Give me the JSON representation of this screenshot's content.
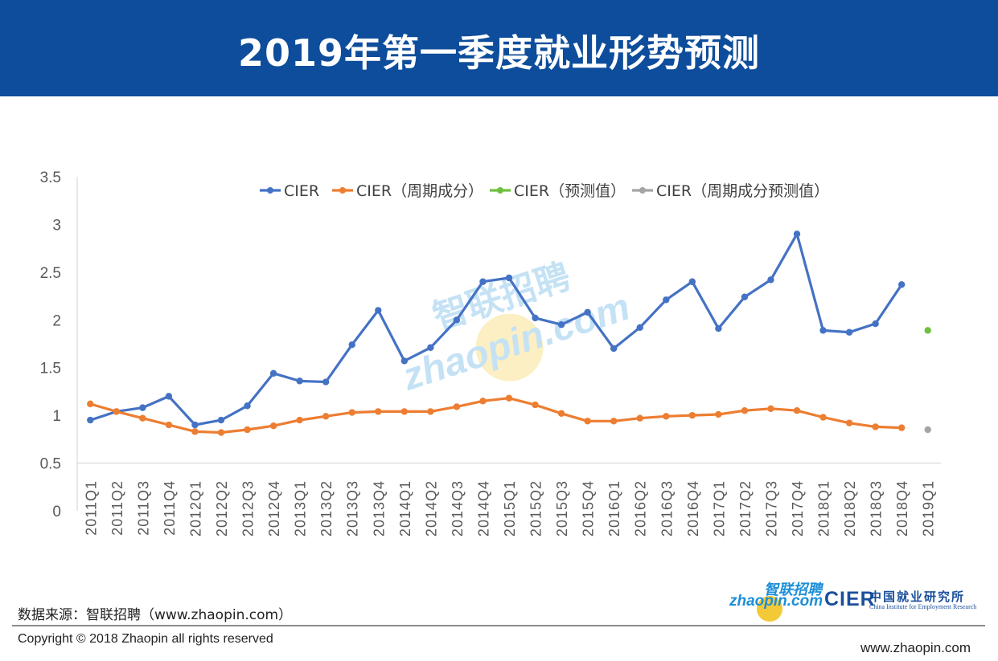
{
  "page": {
    "title": "2019年第一季度就业形势预测",
    "source": "数据来源：智联招聘（www.zhaopin.com）",
    "copyright": "Copyright © 2018 Zhaopin all rights reserved",
    "website": "www.zhaopin.com",
    "watermark": {
      "cn": "智联招聘",
      "en": "zhaopin.com"
    },
    "logo": {
      "cn": "智联招聘",
      "en": "zhaopin.com",
      "cier": "CIER",
      "cier_cn": "中国就业研究所",
      "cier_en": "China Institute for Employment Research"
    }
  },
  "colors": {
    "banner": "#0e4d9b",
    "cier": "#4472c4",
    "cier_cycle": "#ed7d31",
    "cier_forecast": "#70c040",
    "cier_cycle_forecast": "#a5a5a5"
  },
  "chart_data": {
    "type": "line",
    "ylim": [
      0,
      3.5
    ],
    "yticks": [
      "0",
      "0.5",
      "1",
      "1.5",
      "2",
      "2.5",
      "3",
      "3.5"
    ],
    "legend_position": "top",
    "grid": false,
    "categories": [
      "2011Q1",
      "2011Q2",
      "2011Q3",
      "2011Q4",
      "2012Q1",
      "2012Q2",
      "2012Q3",
      "2012Q4",
      "2013Q1",
      "2013Q2",
      "2013Q3",
      "2013Q4",
      "2014Q1",
      "2014Q2",
      "2014Q3",
      "2014Q4",
      "2015Q1",
      "2015Q2",
      "2015Q3",
      "2015Q4",
      "2016Q1",
      "2016Q2",
      "2016Q3",
      "2016Q4",
      "2017Q1",
      "2017Q2",
      "2017Q3",
      "2017Q4",
      "2018Q1",
      "2018Q2",
      "2018Q3",
      "2018Q4",
      "2019Q1"
    ],
    "series": [
      {
        "name": "CIER",
        "color": "#4472c4",
        "values": [
          0.95,
          1.04,
          1.08,
          1.2,
          0.9,
          0.95,
          1.1,
          1.44,
          1.36,
          1.35,
          1.74,
          2.1,
          1.57,
          1.71,
          2.0,
          2.4,
          2.44,
          2.02,
          1.95,
          2.08,
          1.7,
          1.92,
          2.21,
          2.4,
          1.91,
          2.24,
          2.42,
          2.9,
          1.89,
          1.87,
          1.96,
          2.37,
          null
        ]
      },
      {
        "name": "CIER（周期成分）",
        "color": "#ed7d31",
        "values": [
          1.12,
          1.04,
          0.97,
          0.9,
          0.83,
          0.82,
          0.85,
          0.89,
          0.95,
          0.99,
          1.03,
          1.04,
          1.04,
          1.04,
          1.09,
          1.15,
          1.18,
          1.11,
          1.02,
          0.94,
          0.94,
          0.97,
          0.99,
          1.0,
          1.01,
          1.05,
          1.07,
          1.05,
          0.98,
          0.92,
          0.88,
          0.87,
          null
        ]
      },
      {
        "name": "CIER（预测值）",
        "color": "#70c040",
        "values": [
          null,
          null,
          null,
          null,
          null,
          null,
          null,
          null,
          null,
          null,
          null,
          null,
          null,
          null,
          null,
          null,
          null,
          null,
          null,
          null,
          null,
          null,
          null,
          null,
          null,
          null,
          null,
          null,
          null,
          null,
          null,
          null,
          1.89
        ]
      },
      {
        "name": "CIER（周期成分预测值）",
        "color": "#a5a5a5",
        "values": [
          null,
          null,
          null,
          null,
          null,
          null,
          null,
          null,
          null,
          null,
          null,
          null,
          null,
          null,
          null,
          null,
          null,
          null,
          null,
          null,
          null,
          null,
          null,
          null,
          null,
          null,
          null,
          null,
          null,
          null,
          null,
          null,
          0.85
        ]
      }
    ]
  }
}
